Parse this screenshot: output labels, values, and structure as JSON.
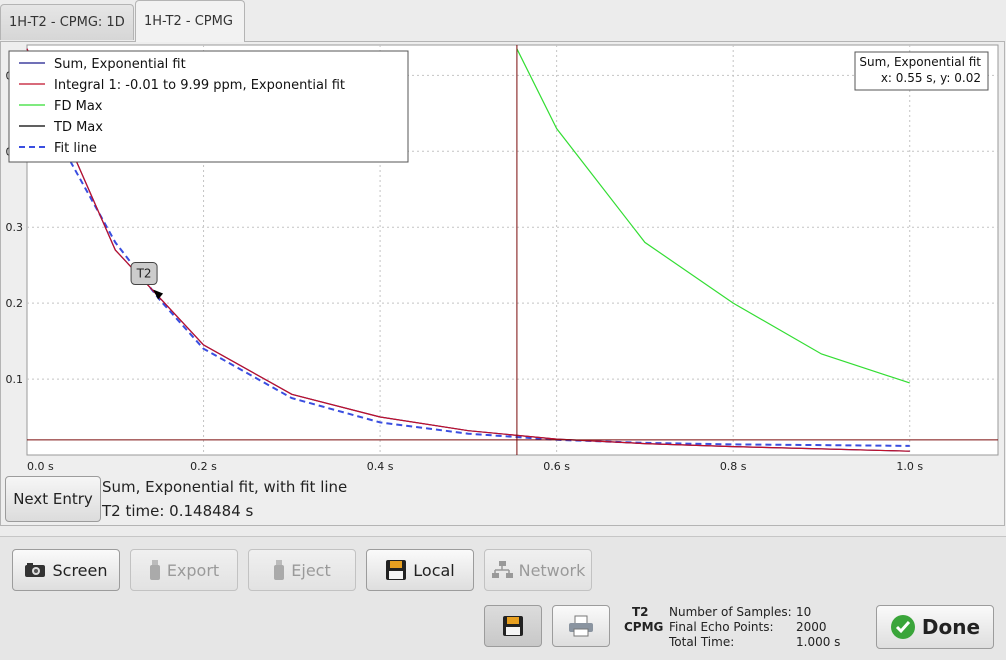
{
  "tabs": [
    {
      "label": "1H-T2 - CPMG: 1D"
    },
    {
      "label": "1H-T2 - CPMG"
    }
  ],
  "chart_data": {
    "type": "line",
    "xlabel": "",
    "ylabel": "",
    "xlim": [
      0,
      1.1
    ],
    "ylim": [
      0,
      0.54
    ],
    "x_ticks": [
      0.0,
      0.2,
      0.4,
      0.6,
      0.8,
      1.0
    ],
    "x_tick_labels": [
      "0.0 s",
      "0.2 s",
      "0.4 s",
      "0.6 s",
      "0.8 s",
      "1.0 s"
    ],
    "y_ticks": [
      0.1,
      0.2,
      0.3,
      0.4,
      0.5
    ],
    "y_tick_labels": [
      "0.1",
      "0.2",
      "0.3",
      "0.4",
      "0.5"
    ],
    "grid": true,
    "legend_placement": "top-left",
    "series": [
      {
        "name": "Sum, Exponential fit",
        "color": "#1a1a8c",
        "style": "solid",
        "x": [
          0,
          0.1,
          0.2,
          0.3,
          0.4,
          0.5,
          0.6,
          0.7,
          0.8,
          0.9,
          1.0
        ],
        "y": [
          0.535,
          0.27,
          0.145,
          0.08,
          0.05,
          0.032,
          0.021,
          0.015,
          0.011,
          0.008,
          0.005
        ]
      },
      {
        "name": "Integral 1: -0.01 to 9.99 ppm, Exponential fit",
        "color": "#c0102a",
        "style": "solid",
        "x": [
          0,
          0.1,
          0.2,
          0.3,
          0.4,
          0.5,
          0.6,
          0.7,
          0.8,
          0.9,
          1.0
        ],
        "y": [
          0.535,
          0.27,
          0.145,
          0.08,
          0.05,
          0.032,
          0.021,
          0.015,
          0.011,
          0.008,
          0.005
        ]
      },
      {
        "name": "FD Max",
        "color": "#33dd33",
        "style": "solid",
        "x": [
          0.555,
          0.6,
          0.7,
          0.8,
          0.9,
          1.0
        ],
        "y": [
          0.535,
          0.43,
          0.28,
          0.2,
          0.133,
          0.095
        ]
      },
      {
        "name": "TD Max",
        "color": "#000000",
        "style": "solid",
        "x": [],
        "y": []
      },
      {
        "name": "Fit line",
        "color": "#3a4ee0",
        "style": "dashed",
        "x": [
          0,
          0.05,
          0.1,
          0.15,
          0.2,
          0.3,
          0.4,
          0.5,
          0.6,
          0.7,
          0.8,
          0.9,
          1.0
        ],
        "y": [
          0.52,
          0.385,
          0.28,
          0.205,
          0.14,
          0.075,
          0.043,
          0.028,
          0.02,
          0.016,
          0.014,
          0.013,
          0.012
        ]
      }
    ],
    "cursor": {
      "x": 0.555,
      "y": 0.02,
      "color": "#7a0a0a"
    },
    "readout": {
      "title": "Sum, Exponential fit",
      "value": "x: 0.55 s, y: 0.02"
    },
    "marker": {
      "label": "T2",
      "x": 0.148484,
      "y": 0.21
    }
  },
  "info": {
    "title": "Sum, Exponential fit, with fit line",
    "t2": "T2 time: 0.148484 s"
  },
  "next_entry": "Next Entry",
  "toolbar": {
    "screen": "Screen",
    "export": "Export",
    "eject": "Eject",
    "local": "Local",
    "network": "Network",
    "done": "Done"
  },
  "experiment": {
    "line1": "T2",
    "line2": "CPMG"
  },
  "stats": [
    {
      "label": "Number of Samples:",
      "value": "10"
    },
    {
      "label": "Final Echo Points:",
      "value": "2000"
    },
    {
      "label": "Total Time:",
      "value": "1.000 s"
    }
  ]
}
